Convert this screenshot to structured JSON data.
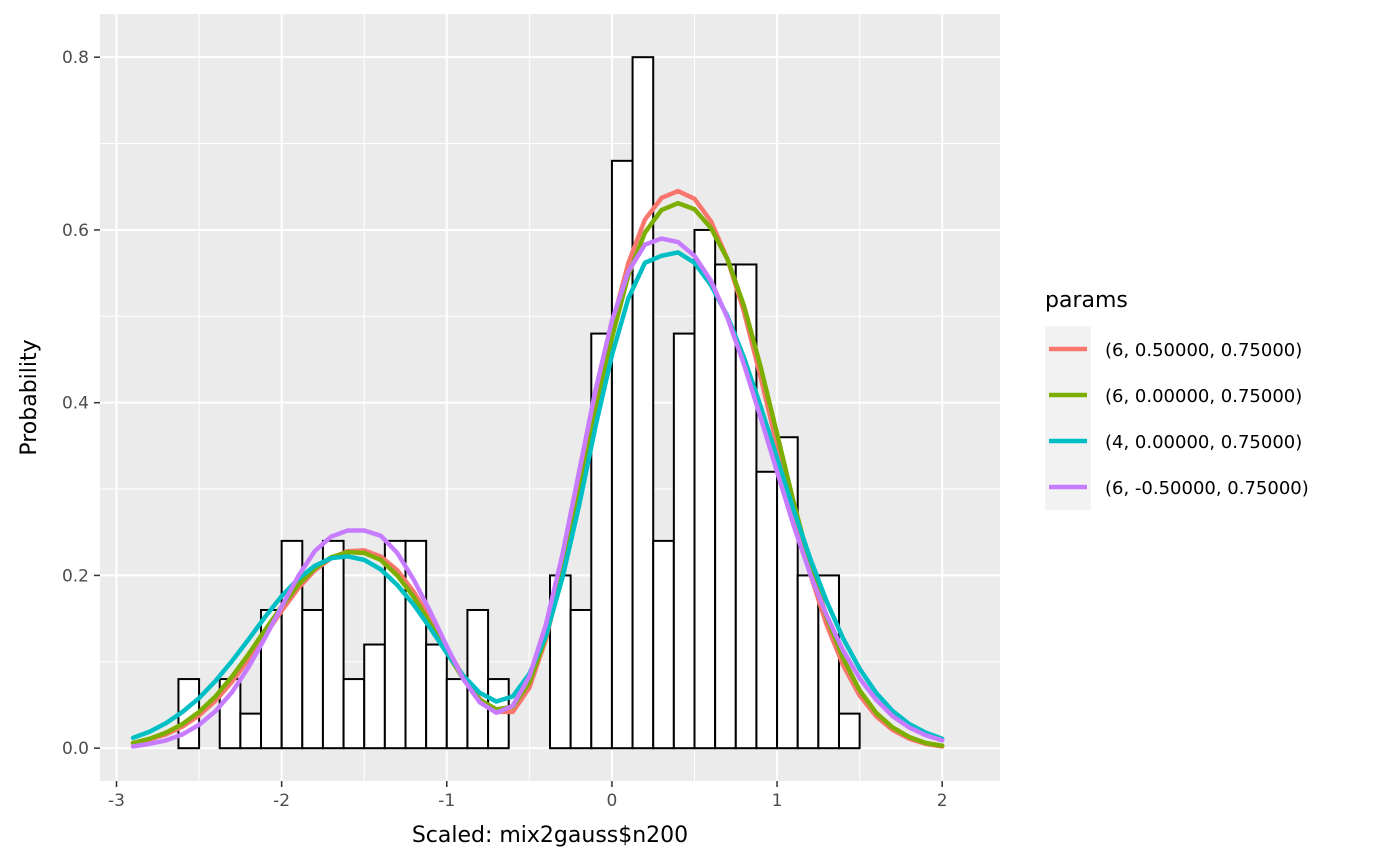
{
  "chart_data": {
    "type": "histogram+line",
    "xlabel": "Scaled: mix2gauss$n200",
    "ylabel": "Probability",
    "xlim": [
      -3.1,
      2.35
    ],
    "ylim": [
      -0.038,
      0.85
    ],
    "x_ticks": [
      -3,
      -2,
      -1,
      0,
      1,
      2
    ],
    "x_tick_labels": [
      "-3",
      "-2",
      "-1",
      "0",
      "1",
      "2"
    ],
    "y_ticks": [
      0.0,
      0.2,
      0.4,
      0.6,
      0.8
    ],
    "y_tick_labels": [
      "0.0",
      "0.2",
      "0.4",
      "0.6",
      "0.8"
    ],
    "grid": true,
    "legend_placement": "right",
    "legend_title": "params",
    "histogram": {
      "bin_width": 0.125,
      "bin_start": -2.875,
      "values": [
        0.0,
        0.0,
        0.08,
        0.0,
        0.08,
        0.04,
        0.16,
        0.24,
        0.16,
        0.24,
        0.08,
        0.12,
        0.24,
        0.24,
        0.12,
        0.08,
        0.16,
        0.08,
        0.0,
        0.0,
        0.2,
        0.16,
        0.48,
        0.68,
        0.8,
        0.24,
        0.48,
        0.6,
        0.56,
        0.56,
        0.32,
        0.36,
        0.2,
        0.2,
        0.04,
        0.0,
        0.0,
        0.0
      ],
      "fill": "#ffffff",
      "stroke": "#000000"
    },
    "series": [
      {
        "name": "(6, 0.50000, 0.75000)",
        "color": "#F8766D",
        "x": [
          -2.9,
          -2.8,
          -2.7,
          -2.6,
          -2.5,
          -2.4,
          -2.3,
          -2.2,
          -2.1,
          -2.0,
          -1.9,
          -1.8,
          -1.7,
          -1.6,
          -1.5,
          -1.4,
          -1.3,
          -1.2,
          -1.1,
          -1.0,
          -0.9,
          -0.8,
          -0.7,
          -0.6,
          -0.5,
          -0.4,
          -0.3,
          -0.2,
          -0.1,
          0.0,
          0.1,
          0.2,
          0.3,
          0.4,
          0.5,
          0.6,
          0.7,
          0.8,
          0.9,
          1.0,
          1.1,
          1.2,
          1.3,
          1.4,
          1.5,
          1.6,
          1.7,
          1.8,
          1.9,
          2.0
        ],
        "y": [
          0.006,
          0.01,
          0.016,
          0.025,
          0.038,
          0.055,
          0.077,
          0.103,
          0.131,
          0.159,
          0.185,
          0.206,
          0.22,
          0.228,
          0.229,
          0.222,
          0.206,
          0.181,
          0.15,
          0.116,
          0.083,
          0.057,
          0.042,
          0.042,
          0.07,
          0.126,
          0.204,
          0.299,
          0.4,
          0.49,
          0.562,
          0.612,
          0.637,
          0.645,
          0.636,
          0.61,
          0.566,
          0.505,
          0.43,
          0.35,
          0.272,
          0.202,
          0.143,
          0.096,
          0.061,
          0.037,
          0.021,
          0.011,
          0.005,
          0.002
        ]
      },
      {
        "name": "(6, 0.00000, 0.75000)",
        "color": "#7CAE00",
        "x": [
          -2.9,
          -2.8,
          -2.7,
          -2.6,
          -2.5,
          -2.4,
          -2.3,
          -2.2,
          -2.1,
          -2.0,
          -1.9,
          -1.8,
          -1.7,
          -1.6,
          -1.5,
          -1.4,
          -1.3,
          -1.2,
          -1.1,
          -1.0,
          -0.9,
          -0.8,
          -0.7,
          -0.6,
          -0.5,
          -0.4,
          -0.3,
          -0.2,
          -0.1,
          0.0,
          0.1,
          0.2,
          0.3,
          0.4,
          0.5,
          0.6,
          0.7,
          0.8,
          0.9,
          1.0,
          1.1,
          1.2,
          1.3,
          1.4,
          1.5,
          1.6,
          1.7,
          1.8,
          1.9,
          2.0
        ],
        "y": [
          0.006,
          0.011,
          0.018,
          0.028,
          0.042,
          0.06,
          0.083,
          0.109,
          0.137,
          0.164,
          0.189,
          0.208,
          0.221,
          0.227,
          0.226,
          0.218,
          0.2,
          0.175,
          0.144,
          0.111,
          0.08,
          0.056,
          0.045,
          0.048,
          0.076,
          0.129,
          0.203,
          0.291,
          0.387,
          0.475,
          0.548,
          0.597,
          0.623,
          0.631,
          0.624,
          0.602,
          0.566,
          0.512,
          0.442,
          0.364,
          0.285,
          0.213,
          0.152,
          0.104,
          0.067,
          0.041,
          0.024,
          0.013,
          0.006,
          0.003
        ]
      },
      {
        "name": "(4, 0.00000, 0.75000)",
        "color": "#00BFC4",
        "x": [
          -2.9,
          -2.8,
          -2.7,
          -2.6,
          -2.5,
          -2.4,
          -2.3,
          -2.2,
          -2.1,
          -2.0,
          -1.9,
          -1.8,
          -1.7,
          -1.6,
          -1.5,
          -1.4,
          -1.3,
          -1.2,
          -1.1,
          -1.0,
          -0.9,
          -0.8,
          -0.7,
          -0.6,
          -0.5,
          -0.4,
          -0.3,
          -0.2,
          -0.1,
          0.0,
          0.1,
          0.2,
          0.3,
          0.4,
          0.5,
          0.6,
          0.7,
          0.8,
          0.9,
          1.0,
          1.1,
          1.2,
          1.3,
          1.4,
          1.5,
          1.6,
          1.7,
          1.8,
          1.9,
          2.0
        ],
        "y": [
          0.012,
          0.019,
          0.029,
          0.042,
          0.058,
          0.078,
          0.101,
          0.126,
          0.152,
          0.176,
          0.196,
          0.211,
          0.22,
          0.222,
          0.218,
          0.207,
          0.189,
          0.166,
          0.139,
          0.11,
          0.084,
          0.064,
          0.054,
          0.06,
          0.086,
          0.13,
          0.197,
          0.28,
          0.372,
          0.455,
          0.521,
          0.562,
          0.57,
          0.574,
          0.562,
          0.536,
          0.5,
          0.452,
          0.396,
          0.336,
          0.276,
          0.22,
          0.17,
          0.127,
          0.092,
          0.064,
          0.043,
          0.028,
          0.018,
          0.011
        ]
      },
      {
        "name": "(6, -0.50000, 0.75000)",
        "color": "#C77CFF",
        "x": [
          -2.9,
          -2.8,
          -2.7,
          -2.6,
          -2.5,
          -2.4,
          -2.3,
          -2.2,
          -2.1,
          -2.0,
          -1.9,
          -1.8,
          -1.7,
          -1.6,
          -1.5,
          -1.4,
          -1.3,
          -1.2,
          -1.1,
          -1.0,
          -0.9,
          -0.8,
          -0.7,
          -0.6,
          -0.5,
          -0.4,
          -0.3,
          -0.2,
          -0.1,
          0.0,
          0.1,
          0.2,
          0.3,
          0.4,
          0.5,
          0.6,
          0.7,
          0.8,
          0.9,
          1.0,
          1.1,
          1.2,
          1.3,
          1.4,
          1.5,
          1.6,
          1.7,
          1.8,
          1.9,
          2.0
        ],
        "y": [
          0.002,
          0.005,
          0.009,
          0.016,
          0.027,
          0.043,
          0.065,
          0.094,
          0.128,
          0.164,
          0.199,
          0.228,
          0.245,
          0.252,
          0.252,
          0.246,
          0.226,
          0.195,
          0.158,
          0.118,
          0.08,
          0.053,
          0.041,
          0.049,
          0.083,
          0.143,
          0.224,
          0.319,
          0.414,
          0.495,
          0.552,
          0.583,
          0.59,
          0.586,
          0.57,
          0.541,
          0.498,
          0.444,
          0.383,
          0.32,
          0.258,
          0.202,
          0.154,
          0.113,
          0.081,
          0.056,
          0.037,
          0.024,
          0.015,
          0.009
        ]
      }
    ]
  }
}
